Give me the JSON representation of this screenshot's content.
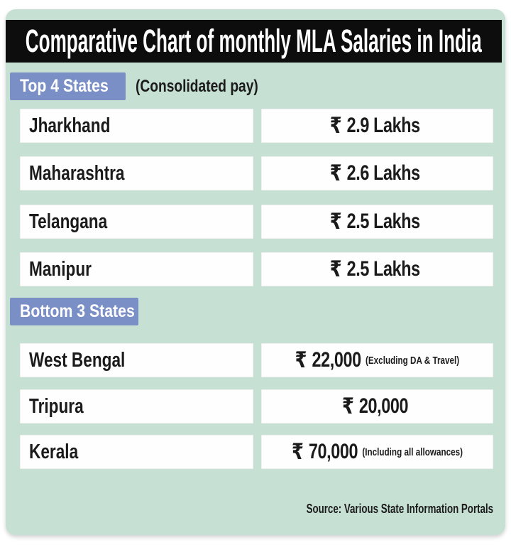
{
  "header": {
    "title": "Comparative Chart of monthly MLA Salaries in India"
  },
  "sections": [
    {
      "label": "Top 4 States",
      "label_note": "(Consolidated pay)",
      "rows": [
        {
          "state": "Jharkhand",
          "symbol": "₹",
          "amount": "2.9 Lakhs",
          "note": ""
        },
        {
          "state": "Maharashtra",
          "symbol": "₹",
          "amount": "2.6 Lakhs",
          "note": ""
        },
        {
          "state": "Telangana",
          "symbol": "₹",
          "amount": "2.5 Lakhs",
          "note": ""
        },
        {
          "state": "Manipur",
          "symbol": "₹",
          "amount": "2.5 Lakhs",
          "note": ""
        }
      ]
    },
    {
      "label": "Bottom 3 States",
      "label_note": "",
      "rows": [
        {
          "state": "West Bengal",
          "symbol": "₹",
          "amount": "22,000",
          "note": "(Excluding DA & Travel)"
        },
        {
          "state": "Tripura",
          "symbol": "₹",
          "amount": "20,000",
          "note": ""
        },
        {
          "state": "Kerala",
          "symbol": "₹",
          "amount": "70,000",
          "note": "(Including all allowances)"
        }
      ]
    }
  ],
  "footer": {
    "source": "Source: Various State Information Portals"
  },
  "colors": {
    "background": "#c6e0d4",
    "header_bar": "#0d0d0d",
    "label_blue": "#7b8fc7",
    "row_box": "#fefefe",
    "text": "#1b1b1b"
  },
  "chart_data": {
    "type": "table",
    "title": "Comparative Chart of monthly MLA Salaries in India",
    "unit": "INR per month",
    "groups": [
      {
        "label": "Top 4 States",
        "note": "(Consolidated pay)",
        "states": [
          "Jharkhand",
          "Maharashtra",
          "Telangana",
          "Manipur"
        ],
        "values_inr_per_month": [
          290000,
          260000,
          250000,
          250000
        ],
        "display_values": [
          "₹ 2.9 Lakhs",
          "₹ 2.6 Lakhs",
          "₹ 2.5 Lakhs",
          "₹ 2.5 Lakhs"
        ],
        "value_notes": [
          "",
          "",
          "",
          ""
        ]
      },
      {
        "label": "Bottom 3 States",
        "note": "",
        "states": [
          "West Bengal",
          "Tripura",
          "Kerala"
        ],
        "values_inr_per_month": [
          22000,
          20000,
          70000
        ],
        "display_values": [
          "₹ 22,000",
          "₹ 20,000",
          "₹ 70,000"
        ],
        "value_notes": [
          "(Excluding DA & Travel)",
          "",
          "(Including all allowances)"
        ]
      }
    ],
    "source": "Source: Various State Information Portals"
  }
}
